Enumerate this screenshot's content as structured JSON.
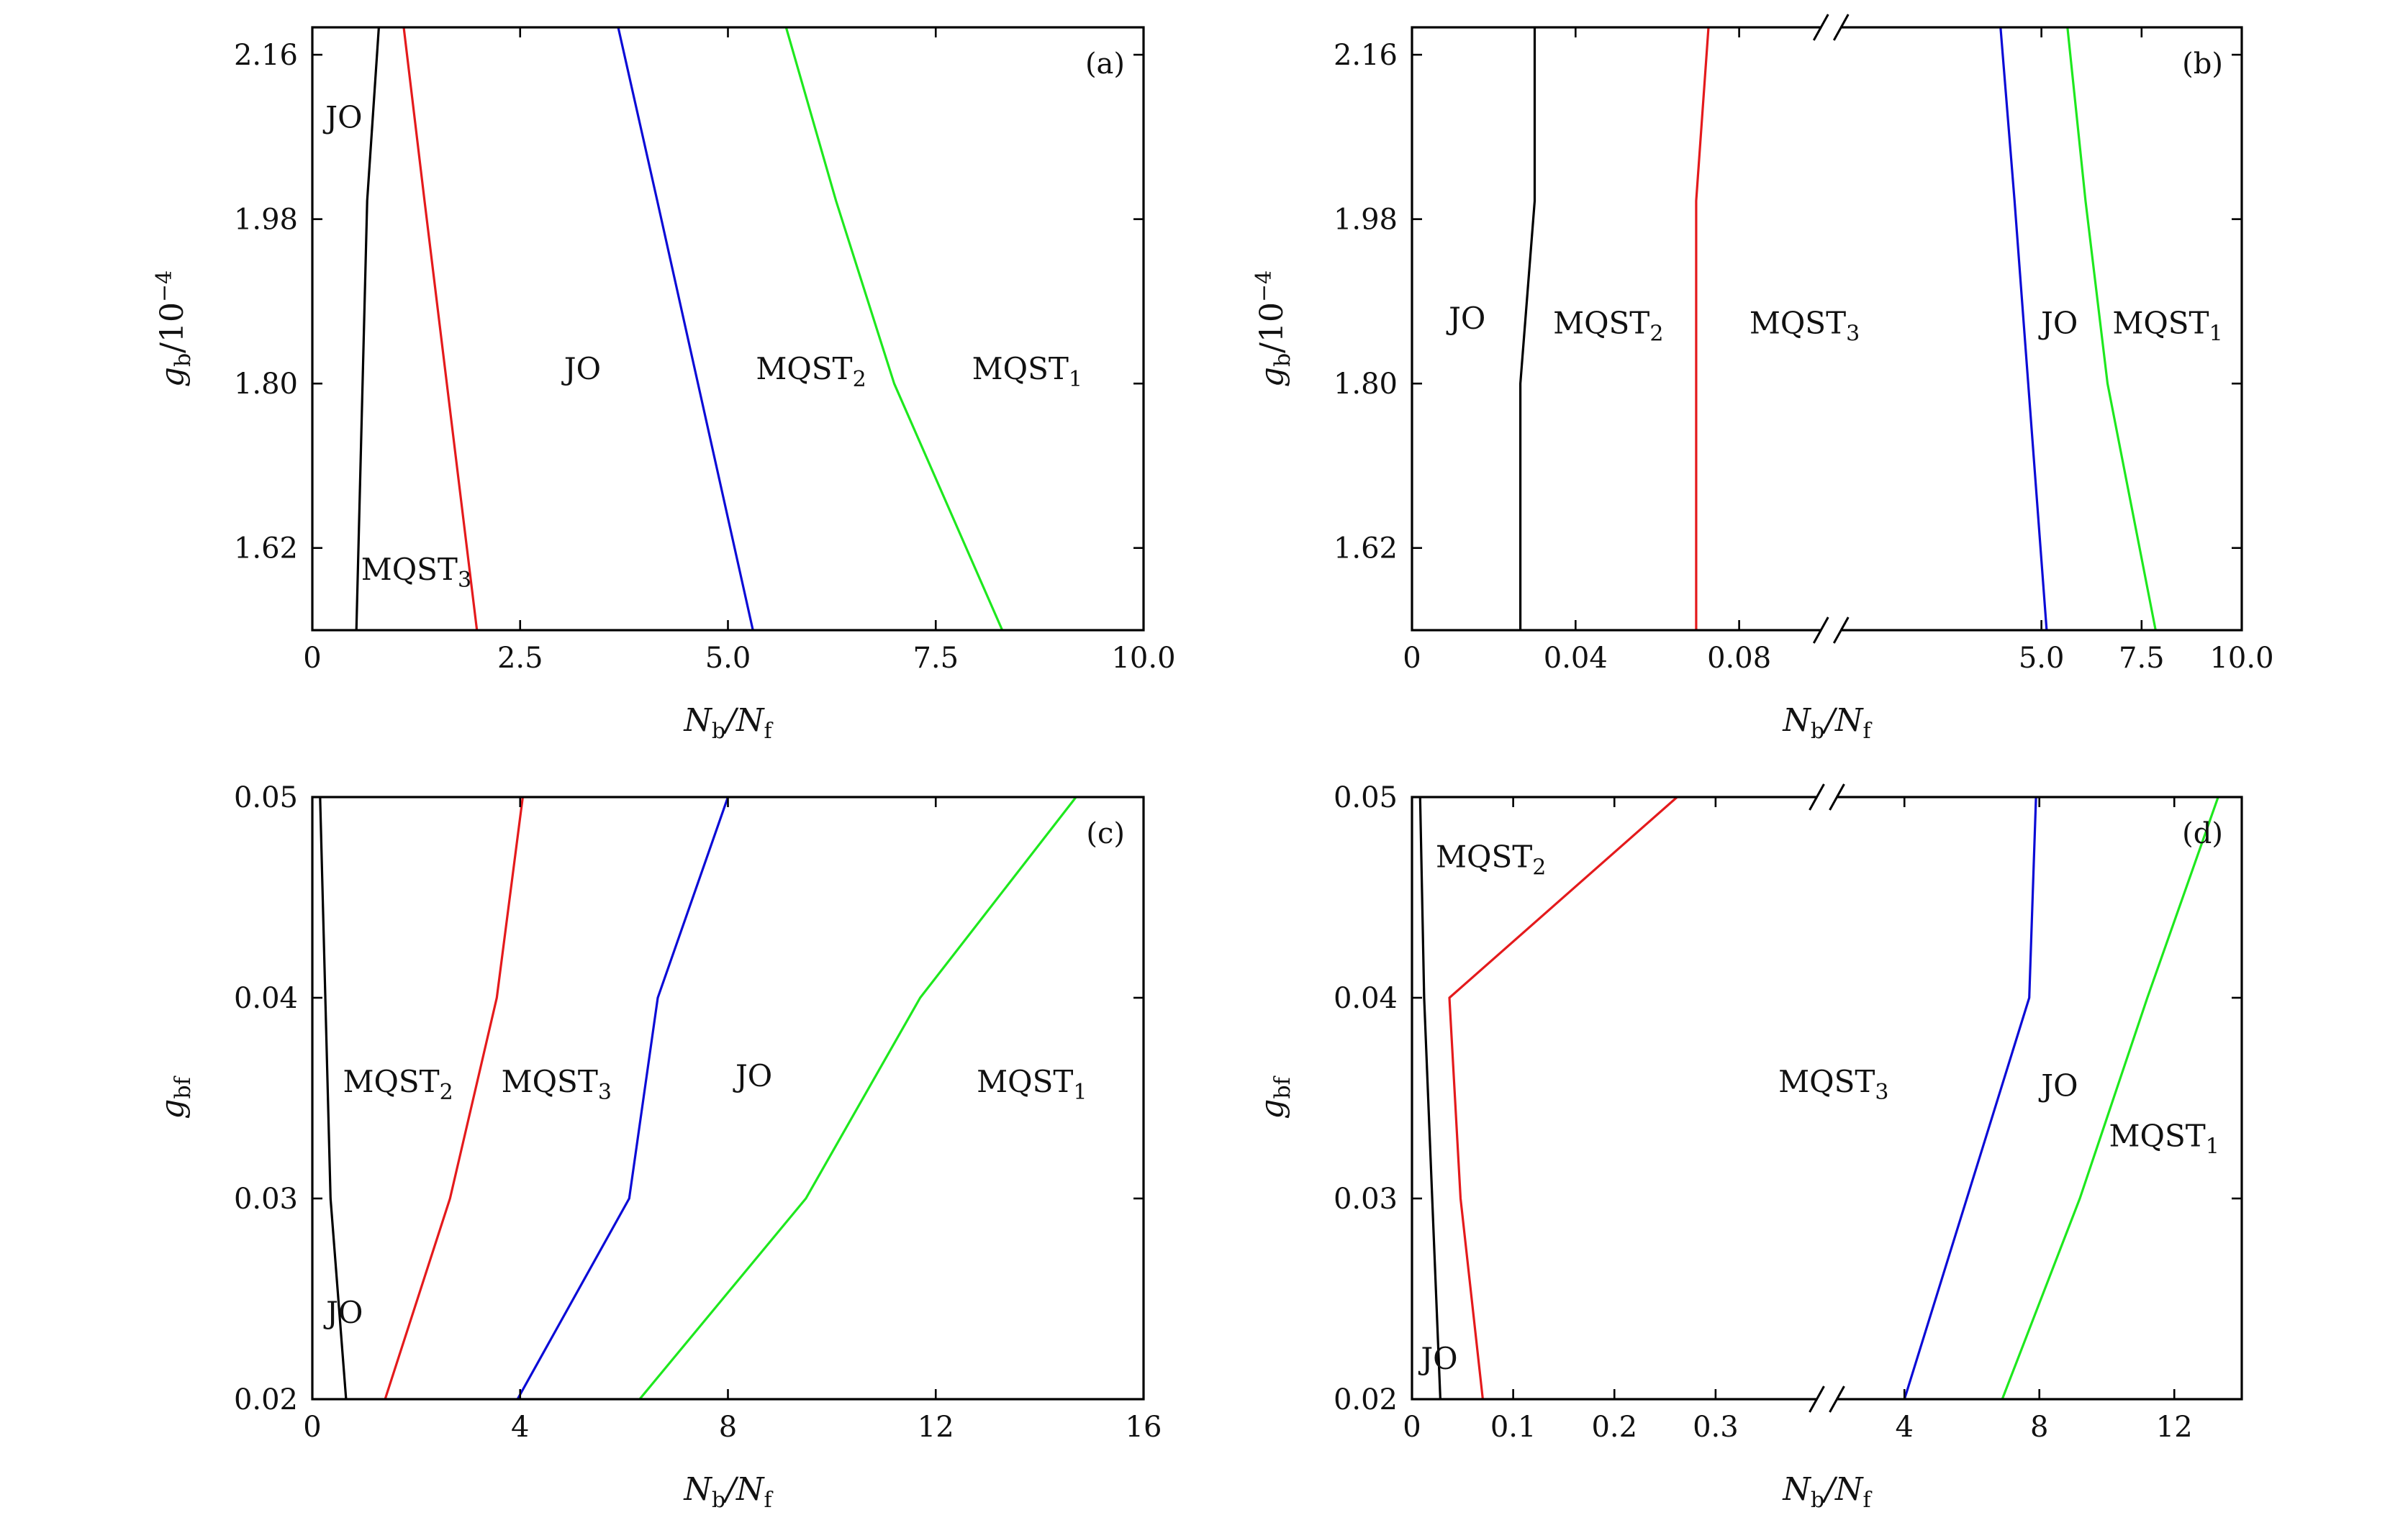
{
  "colors": {
    "black": "#000000",
    "red": "#e41a1c",
    "blue": "#0b0bd6",
    "green": "#1ee81e"
  },
  "chart_data": [
    {
      "panel": "(a)",
      "type": "line",
      "xlabel": {
        "main": "N",
        "sub1": "b",
        "mid": "/N",
        "sub2": "f"
      },
      "ylabel": {
        "main": "g",
        "sub": "b",
        "tail": "/10",
        "sup": "−4"
      },
      "xlim": [
        0,
        10
      ],
      "ylim": [
        1.53,
        2.19
      ],
      "xticks": [
        {
          "v": 0,
          "label": "0"
        },
        {
          "v": 2.5,
          "label": "2.5"
        },
        {
          "v": 5.0,
          "label": "5.0"
        },
        {
          "v": 7.5,
          "label": "7.5"
        },
        {
          "v": 10.0,
          "label": "10.0"
        }
      ],
      "yticks": [
        {
          "v": 1.62,
          "label": "1.62"
        },
        {
          "v": 1.8,
          "label": "1.80"
        },
        {
          "v": 1.98,
          "label": "1.98"
        },
        {
          "v": 2.16,
          "label": "2.16"
        }
      ],
      "series": [
        {
          "color": "black",
          "points": [
            [
              0.53,
              1.53
            ],
            [
              0.66,
              2.0
            ],
            [
              0.8,
              2.19
            ]
          ]
        },
        {
          "color": "red",
          "points": [
            [
              1.98,
              1.53
            ],
            [
              1.35,
              2.0
            ],
            [
              1.1,
              2.19
            ]
          ]
        },
        {
          "color": "blue",
          "points": [
            [
              5.3,
              1.53
            ],
            [
              4.15,
              2.0
            ],
            [
              3.68,
              2.19
            ]
          ]
        },
        {
          "color": "green",
          "points": [
            [
              8.3,
              1.53
            ],
            [
              7.0,
              1.8
            ],
            [
              6.3,
              2.0
            ],
            [
              5.7,
              2.19
            ]
          ]
        }
      ],
      "regions": [
        {
          "text": "JO",
          "sub": "",
          "x": 0.38,
          "y": 2.08
        },
        {
          "text": "JO",
          "sub": "",
          "x": 3.25,
          "y": 1.805
        },
        {
          "text": "MQST",
          "sub": "2",
          "x": 6.0,
          "y": 1.805
        },
        {
          "text": "MQST",
          "sub": "1",
          "x": 8.6,
          "y": 1.805
        },
        {
          "text": "MQST",
          "sub": "3",
          "x": 1.25,
          "y": 1.585
        }
      ],
      "tag": "(a)"
    },
    {
      "panel": "(b)",
      "type": "line",
      "xlabel": {
        "main": "N",
        "sub1": "b",
        "mid": "/N",
        "sub2": "f"
      },
      "ylabel": {
        "main": "g",
        "sub": "b",
        "tail": "/10",
        "sup": "−4"
      },
      "broken_x": true,
      "x_segments": [
        {
          "range": [
            0,
            0.1
          ],
          "share": 0.505
        },
        {
          "range": [
            0,
            10
          ],
          "share": 0.495
        }
      ],
      "ylim": [
        1.53,
        2.19
      ],
      "xticks": [
        {
          "seg": 0,
          "v": 0,
          "label": "0"
        },
        {
          "seg": 0,
          "v": 0.04,
          "label": "0.04"
        },
        {
          "seg": 0,
          "v": 0.08,
          "label": "0.08"
        },
        {
          "seg": 1,
          "v": 5.0,
          "label": "5.0"
        },
        {
          "seg": 1,
          "v": 7.5,
          "label": "7.5"
        },
        {
          "seg": 1,
          "v": 10.0,
          "label": "10.0"
        }
      ],
      "yticks": [
        {
          "v": 1.62,
          "label": "1.62"
        },
        {
          "v": 1.8,
          "label": "1.80"
        },
        {
          "v": 1.98,
          "label": "1.98"
        },
        {
          "v": 2.16,
          "label": "2.16"
        }
      ],
      "series": [
        {
          "color": "black",
          "seg": 0,
          "points": [
            [
              0.0265,
              1.53
            ],
            [
              0.0265,
              1.8
            ],
            [
              0.03,
              2.0
            ],
            [
              0.03,
              2.19
            ]
          ]
        },
        {
          "color": "red",
          "seg": 0,
          "points": [
            [
              0.0695,
              1.53
            ],
            [
              0.0695,
              2.0
            ],
            [
              0.0725,
              2.19
            ]
          ]
        },
        {
          "color": "blue",
          "seg": 1,
          "points": [
            [
              5.13,
              1.53
            ],
            [
              4.33,
              2.0
            ],
            [
              3.98,
              2.19
            ]
          ]
        },
        {
          "color": "green",
          "seg": 1,
          "points": [
            [
              7.85,
              1.53
            ],
            [
              6.65,
              1.8
            ],
            [
              6.1,
              2.0
            ],
            [
              5.65,
              2.19
            ]
          ]
        }
      ],
      "regions": [
        {
          "text": "JO",
          "sub": "",
          "seg": 0,
          "x": 0.0135,
          "y": 1.86
        },
        {
          "text": "MQST",
          "sub": "2",
          "seg": 0,
          "x": 0.048,
          "y": 1.855
        },
        {
          "text": "MQST",
          "sub": "3",
          "seg": 0,
          "x": 0.096,
          "y": 1.855
        },
        {
          "text": "JO",
          "sub": "",
          "seg": 1,
          "x": 5.45,
          "y": 1.855
        },
        {
          "text": "MQST",
          "sub": "1",
          "seg": 1,
          "x": 8.15,
          "y": 1.855
        }
      ],
      "tag": "(b)"
    },
    {
      "panel": "(c)",
      "type": "line",
      "xlabel": {
        "main": "N",
        "sub1": "b",
        "mid": "/N",
        "sub2": "f"
      },
      "ylabel": {
        "main": "g",
        "sub": "bf",
        "tail": "",
        "sup": ""
      },
      "xlim": [
        0,
        16
      ],
      "ylim": [
        0.02,
        0.05
      ],
      "xticks": [
        {
          "v": 0,
          "label": "0"
        },
        {
          "v": 4,
          "label": "4"
        },
        {
          "v": 8,
          "label": "8"
        },
        {
          "v": 12,
          "label": "12"
        },
        {
          "v": 16,
          "label": "16"
        }
      ],
      "yticks": [
        {
          "v": 0.02,
          "label": "0.02"
        },
        {
          "v": 0.03,
          "label": "0.03"
        },
        {
          "v": 0.04,
          "label": "0.04"
        },
        {
          "v": 0.05,
          "label": "0.05"
        }
      ],
      "series": [
        {
          "color": "black",
          "points": [
            [
              0.65,
              0.02
            ],
            [
              0.35,
              0.03
            ],
            [
              0.15,
              0.05
            ]
          ]
        },
        {
          "color": "red",
          "points": [
            [
              1.4,
              0.02
            ],
            [
              2.65,
              0.03
            ],
            [
              3.55,
              0.04
            ],
            [
              4.05,
              0.05
            ]
          ]
        },
        {
          "color": "blue",
          "points": [
            [
              3.95,
              0.02
            ],
            [
              6.1,
              0.03
            ],
            [
              6.65,
              0.04
            ],
            [
              8.0,
              0.05
            ]
          ]
        },
        {
          "color": "green",
          "points": [
            [
              6.3,
              0.02
            ],
            [
              9.5,
              0.03
            ],
            [
              11.7,
              0.04
            ],
            [
              14.7,
              0.05
            ]
          ]
        }
      ],
      "regions": [
        {
          "text": "MQST",
          "sub": "2",
          "x": 1.65,
          "y": 0.0353
        },
        {
          "text": "MQST",
          "sub": "3",
          "x": 4.7,
          "y": 0.0353
        },
        {
          "text": "JO",
          "sub": "",
          "x": 8.5,
          "y": 0.0356
        },
        {
          "text": "MQST",
          "sub": "1",
          "x": 13.85,
          "y": 0.0353
        },
        {
          "text": "JO",
          "sub": "",
          "x": 0.62,
          "y": 0.0238
        }
      ],
      "tag": "(c)"
    },
    {
      "panel": "(d)",
      "type": "line",
      "xlabel": {
        "main": "N",
        "sub1": "b",
        "mid": "/N",
        "sub2": "f"
      },
      "ylabel": {
        "main": "g",
        "sub": "bf",
        "tail": "",
        "sup": ""
      },
      "broken_x": true,
      "x_segments": [
        {
          "range": [
            0,
            0.4
          ],
          "share": 0.5
        },
        {
          "range": [
            2,
            14
          ],
          "share": 0.5
        }
      ],
      "ylim": [
        0.02,
        0.05
      ],
      "xticks": [
        {
          "seg": 0,
          "v": 0,
          "label": "0"
        },
        {
          "seg": 0,
          "v": 0.1,
          "label": "0.1"
        },
        {
          "seg": 0,
          "v": 0.2,
          "label": "0.2"
        },
        {
          "seg": 0,
          "v": 0.3,
          "label": "0.3"
        },
        {
          "seg": 1,
          "v": 4,
          "label": "4"
        },
        {
          "seg": 1,
          "v": 8,
          "label": "8"
        },
        {
          "seg": 1,
          "v": 12,
          "label": "12"
        }
      ],
      "yticks": [
        {
          "v": 0.02,
          "label": "0.02"
        },
        {
          "v": 0.03,
          "label": "0.03"
        },
        {
          "v": 0.04,
          "label": "0.04"
        },
        {
          "v": 0.05,
          "label": "0.05"
        }
      ],
      "series": [
        {
          "color": "black",
          "seg": 0,
          "points": [
            [
              0.028,
              0.02
            ],
            [
              0.02,
              0.03
            ],
            [
              0.012,
              0.04
            ],
            [
              0.008,
              0.05
            ]
          ]
        },
        {
          "color": "red",
          "seg": 0,
          "points": [
            [
              0.07,
              0.02
            ],
            [
              0.048,
              0.03
            ],
            [
              0.037,
              0.04
            ],
            [
              0.262,
              0.05
            ]
          ]
        },
        {
          "color": "blue",
          "seg": 1,
          "points": [
            [
              4.0,
              0.02
            ],
            [
              7.7,
              0.04
            ],
            [
              7.9,
              0.05
            ]
          ]
        },
        {
          "color": "green",
          "seg": 1,
          "points": [
            [
              6.9,
              0.02
            ],
            [
              9.2,
              0.03
            ],
            [
              11.2,
              0.04
            ],
            [
              13.3,
              0.05
            ]
          ]
        }
      ],
      "regions": [
        {
          "text": "MQST",
          "sub": "2",
          "seg": 0,
          "x": 0.078,
          "y": 0.0465
        },
        {
          "text": "MQST",
          "sub": "3",
          "seg": 1,
          "x": 1.9,
          "y": 0.0353
        },
        {
          "text": "JO",
          "sub": "",
          "seg": 1,
          "x": 8.6,
          "y": 0.0351
        },
        {
          "text": "MQST",
          "sub": "1",
          "seg": 1,
          "x": 11.7,
          "y": 0.0326
        },
        {
          "text": "JO",
          "sub": "",
          "seg": 0,
          "x": 0.027,
          "y": 0.0215
        }
      ],
      "tag": "(d)"
    }
  ]
}
